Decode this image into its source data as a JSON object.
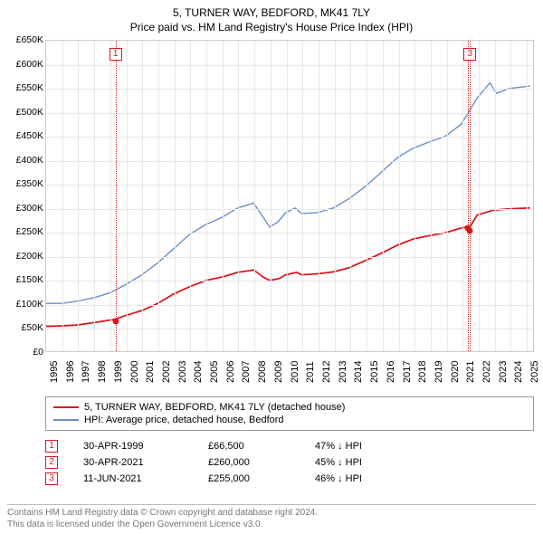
{
  "title": {
    "line1": "5, TURNER WAY, BEDFORD, MK41 7LY",
    "line2": "Price paid vs. HM Land Registry's House Price Index (HPI)"
  },
  "chart": {
    "type": "line",
    "y_axis": {
      "min": 0,
      "max": 650000,
      "step": 50000,
      "labels": [
        "£0",
        "£50K",
        "£100K",
        "£150K",
        "£200K",
        "£250K",
        "£300K",
        "£350K",
        "£400K",
        "£450K",
        "£500K",
        "£550K",
        "£600K",
        "£650K"
      ]
    },
    "x_axis": {
      "min": 1995,
      "max": 2025.5,
      "ticks": [
        1995,
        1996,
        1997,
        1998,
        1999,
        2000,
        2001,
        2002,
        2003,
        2004,
        2005,
        2006,
        2007,
        2008,
        2009,
        2010,
        2011,
        2012,
        2013,
        2014,
        2015,
        2016,
        2017,
        2018,
        2019,
        2020,
        2021,
        2022,
        2023,
        2024,
        2025
      ]
    },
    "background_color": "#ffffff",
    "grid_color": "#e8e8e8",
    "series": [
      {
        "name": "price_paid",
        "label": "5, TURNER WAY, BEDFORD, MK41 7LY (detached house)",
        "color": "#d8181c",
        "line_width": 1.8,
        "points": [
          [
            1995.0,
            52000
          ],
          [
            1996.0,
            53000
          ],
          [
            1997.0,
            55000
          ],
          [
            1998.0,
            60000
          ],
          [
            1999.3,
            66500
          ],
          [
            2000.0,
            75000
          ],
          [
            2001.0,
            85000
          ],
          [
            2002.0,
            100000
          ],
          [
            2003.0,
            120000
          ],
          [
            2004.0,
            135000
          ],
          [
            2005.0,
            148000
          ],
          [
            2006.0,
            155000
          ],
          [
            2007.0,
            165000
          ],
          [
            2008.0,
            170000
          ],
          [
            2008.6,
            155000
          ],
          [
            2009.0,
            148000
          ],
          [
            2009.6,
            152000
          ],
          [
            2010.0,
            160000
          ],
          [
            2010.7,
            165000
          ],
          [
            2011.0,
            160000
          ],
          [
            2012.0,
            162000
          ],
          [
            2013.0,
            166000
          ],
          [
            2014.0,
            175000
          ],
          [
            2015.0,
            190000
          ],
          [
            2016.0,
            205000
          ],
          [
            2017.0,
            222000
          ],
          [
            2018.0,
            235000
          ],
          [
            2019.0,
            242000
          ],
          [
            2020.0,
            248000
          ],
          [
            2021.0,
            258000
          ],
          [
            2021.3,
            260000
          ],
          [
            2021.45,
            255000
          ],
          [
            2022.0,
            285000
          ],
          [
            2023.0,
            295000
          ],
          [
            2024.0,
            298000
          ],
          [
            2025.3,
            300000
          ]
        ]
      },
      {
        "name": "hpi",
        "label": "HPI: Average price, detached house, Bedford",
        "color": "#6a8fc8",
        "line_width": 1.4,
        "points": [
          [
            1995.0,
            100000
          ],
          [
            1996.0,
            100000
          ],
          [
            1997.0,
            105000
          ],
          [
            1998.0,
            112000
          ],
          [
            1999.0,
            122000
          ],
          [
            2000.0,
            140000
          ],
          [
            2001.0,
            160000
          ],
          [
            2002.0,
            185000
          ],
          [
            2003.0,
            215000
          ],
          [
            2004.0,
            245000
          ],
          [
            2005.0,
            265000
          ],
          [
            2006.0,
            280000
          ],
          [
            2007.0,
            300000
          ],
          [
            2008.0,
            310000
          ],
          [
            2008.5,
            285000
          ],
          [
            2009.0,
            260000
          ],
          [
            2009.5,
            270000
          ],
          [
            2010.0,
            290000
          ],
          [
            2010.6,
            300000
          ],
          [
            2011.0,
            288000
          ],
          [
            2012.0,
            290000
          ],
          [
            2013.0,
            300000
          ],
          [
            2014.0,
            320000
          ],
          [
            2015.0,
            345000
          ],
          [
            2016.0,
            375000
          ],
          [
            2017.0,
            405000
          ],
          [
            2018.0,
            425000
          ],
          [
            2019.0,
            438000
          ],
          [
            2020.0,
            450000
          ],
          [
            2021.0,
            475000
          ],
          [
            2022.0,
            530000
          ],
          [
            2022.8,
            562000
          ],
          [
            2023.2,
            540000
          ],
          [
            2024.0,
            550000
          ],
          [
            2025.3,
            555000
          ]
        ]
      }
    ],
    "events": [
      {
        "n": "1",
        "year": 1999.33,
        "value": 66500,
        "color": "#d8181c",
        "date": "30-APR-1999",
        "price": "£66,500",
        "delta": "47% ↓ HPI"
      },
      {
        "n": "2",
        "year": 2021.33,
        "value": 260000,
        "color": "#d8181c",
        "date": "30-APR-2021",
        "price": "£260,000",
        "delta": "45% ↓ HPI"
      },
      {
        "n": "3",
        "year": 2021.45,
        "value": 255000,
        "color": "#d8181c",
        "date": "11-JUN-2021",
        "price": "£255,000",
        "delta": "46% ↓ HPI"
      }
    ],
    "event_badges_visible": [
      "1",
      "3"
    ]
  },
  "legend": {
    "items": [
      {
        "color": "#d8181c",
        "label_ref": "chart.series.0.label"
      },
      {
        "color": "#6a8fc8",
        "label_ref": "chart.series.1.label"
      }
    ]
  },
  "footer": {
    "line1": "Contains HM Land Registry data © Crown copyright and database right 2024.",
    "line2": "This data is licensed under the Open Government Licence v3.0."
  }
}
